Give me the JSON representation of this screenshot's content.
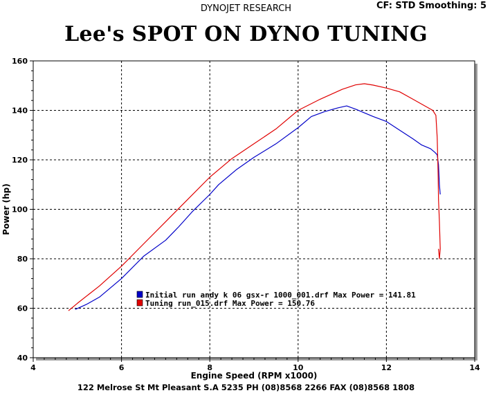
{
  "header": {
    "company": "DYNOJET RESEARCH",
    "settings": "CF: STD  Smoothing: 5"
  },
  "title": "Lee's SPOT ON DYNO TUNING",
  "footer": "122 Melrose St  Mt Pleasant  S.A  5235 PH (08)8568 2266 FAX (08)8568 1808",
  "colors": {
    "series1": "#0000c8",
    "series2": "#e00000",
    "grid": "#000000",
    "frame": "#000000"
  },
  "chart_data": {
    "type": "line",
    "title": "Lee's SPOT ON DYNO TUNING",
    "xlabel": "Engine Speed (RPM x1000)",
    "ylabel": "Power (hp)",
    "xlim": [
      4,
      14
    ],
    "ylim": [
      40,
      160
    ],
    "xticks": [
      4,
      6,
      8,
      10,
      12,
      14
    ],
    "yticks": [
      40,
      60,
      80,
      100,
      120,
      140,
      160
    ],
    "grid": true,
    "legend_position": "center-bottom",
    "series": [
      {
        "name": "Initial run andy k 06 gsx-r 1000_001.drf Max Power = 141.81",
        "color": "#0000c8",
        "x": [
          4.95,
          5.2,
          5.5,
          6.0,
          6.5,
          7.0,
          7.3,
          7.6,
          8.0,
          8.2,
          8.6,
          9.0,
          9.5,
          10.0,
          10.3,
          10.6,
          10.9,
          11.1,
          11.3,
          11.7,
          12.0,
          12.3,
          12.6,
          12.8,
          13.0,
          13.1,
          13.15,
          13.18,
          13.2,
          13.22
        ],
        "y": [
          59.5,
          61.5,
          64.5,
          72,
          81,
          87.5,
          93,
          99,
          106,
          110,
          116,
          121,
          126.5,
          133,
          137.5,
          139.5,
          141,
          141.8,
          140.5,
          137.5,
          135.5,
          132,
          128.5,
          126,
          124.5,
          123,
          122,
          118,
          110,
          106
        ]
      },
      {
        "name": "Tuning run_015.drf Max Power = 150.76",
        "color": "#e00000",
        "x": [
          4.8,
          5.0,
          5.5,
          6.0,
          6.5,
          7.0,
          7.5,
          8.0,
          8.5,
          9.0,
          9.5,
          10.0,
          10.5,
          11.0,
          11.3,
          11.5,
          11.7,
          12.0,
          12.3,
          12.6,
          12.9,
          13.05,
          13.12,
          13.15,
          13.17,
          13.18,
          13.2,
          13.22,
          13.2,
          13.18
        ],
        "y": [
          59,
          62,
          69,
          77,
          86,
          95,
          104,
          113,
          120.5,
          126.5,
          132.5,
          140,
          144.5,
          148.5,
          150.3,
          150.76,
          150.2,
          149,
          147.5,
          144.5,
          141.5,
          140,
          138,
          129,
          116,
          104,
          95,
          84,
          80,
          84
        ]
      }
    ]
  }
}
